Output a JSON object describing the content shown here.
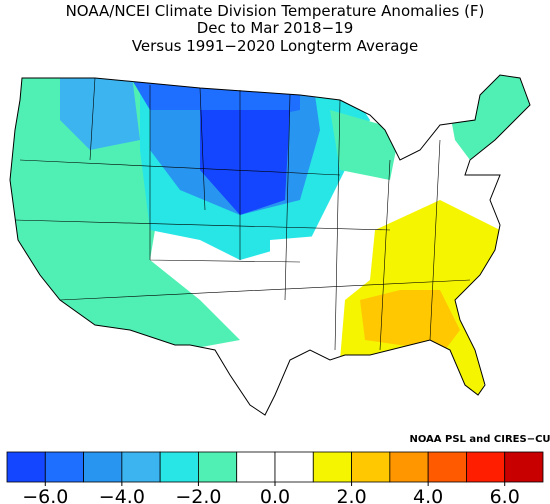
{
  "title_lines": [
    "NOAA/NCEI Climate Division Temperature Anomalies (F)",
    "Dec to Mar 2018−19",
    "Versus 1991−2020 Longterm Average"
  ],
  "credit": "NOAA PSL and CIRES−CU",
  "colorbar": {
    "clim": [
      -7,
      7
    ],
    "colors": [
      "#1446ff",
      "#1e6eff",
      "#2896f0",
      "#3cb4f0",
      "#28e6e6",
      "#50f0b4",
      "#ffffff",
      "#ffffff",
      "#f5f500",
      "#ffc800",
      "#ff9600",
      "#ff5a00",
      "#ff1e00",
      "#c80000"
    ],
    "ticks": [
      {
        "value": -6,
        "label": "−6.0"
      },
      {
        "value": -4,
        "label": "−4.0"
      },
      {
        "value": -2,
        "label": "−2.0"
      },
      {
        "value": 0,
        "label": "0.0"
      },
      {
        "value": 2,
        "label": "2.0"
      },
      {
        "value": 4,
        "label": "4.0"
      },
      {
        "value": 6,
        "label": "6.0"
      }
    ]
  }
}
